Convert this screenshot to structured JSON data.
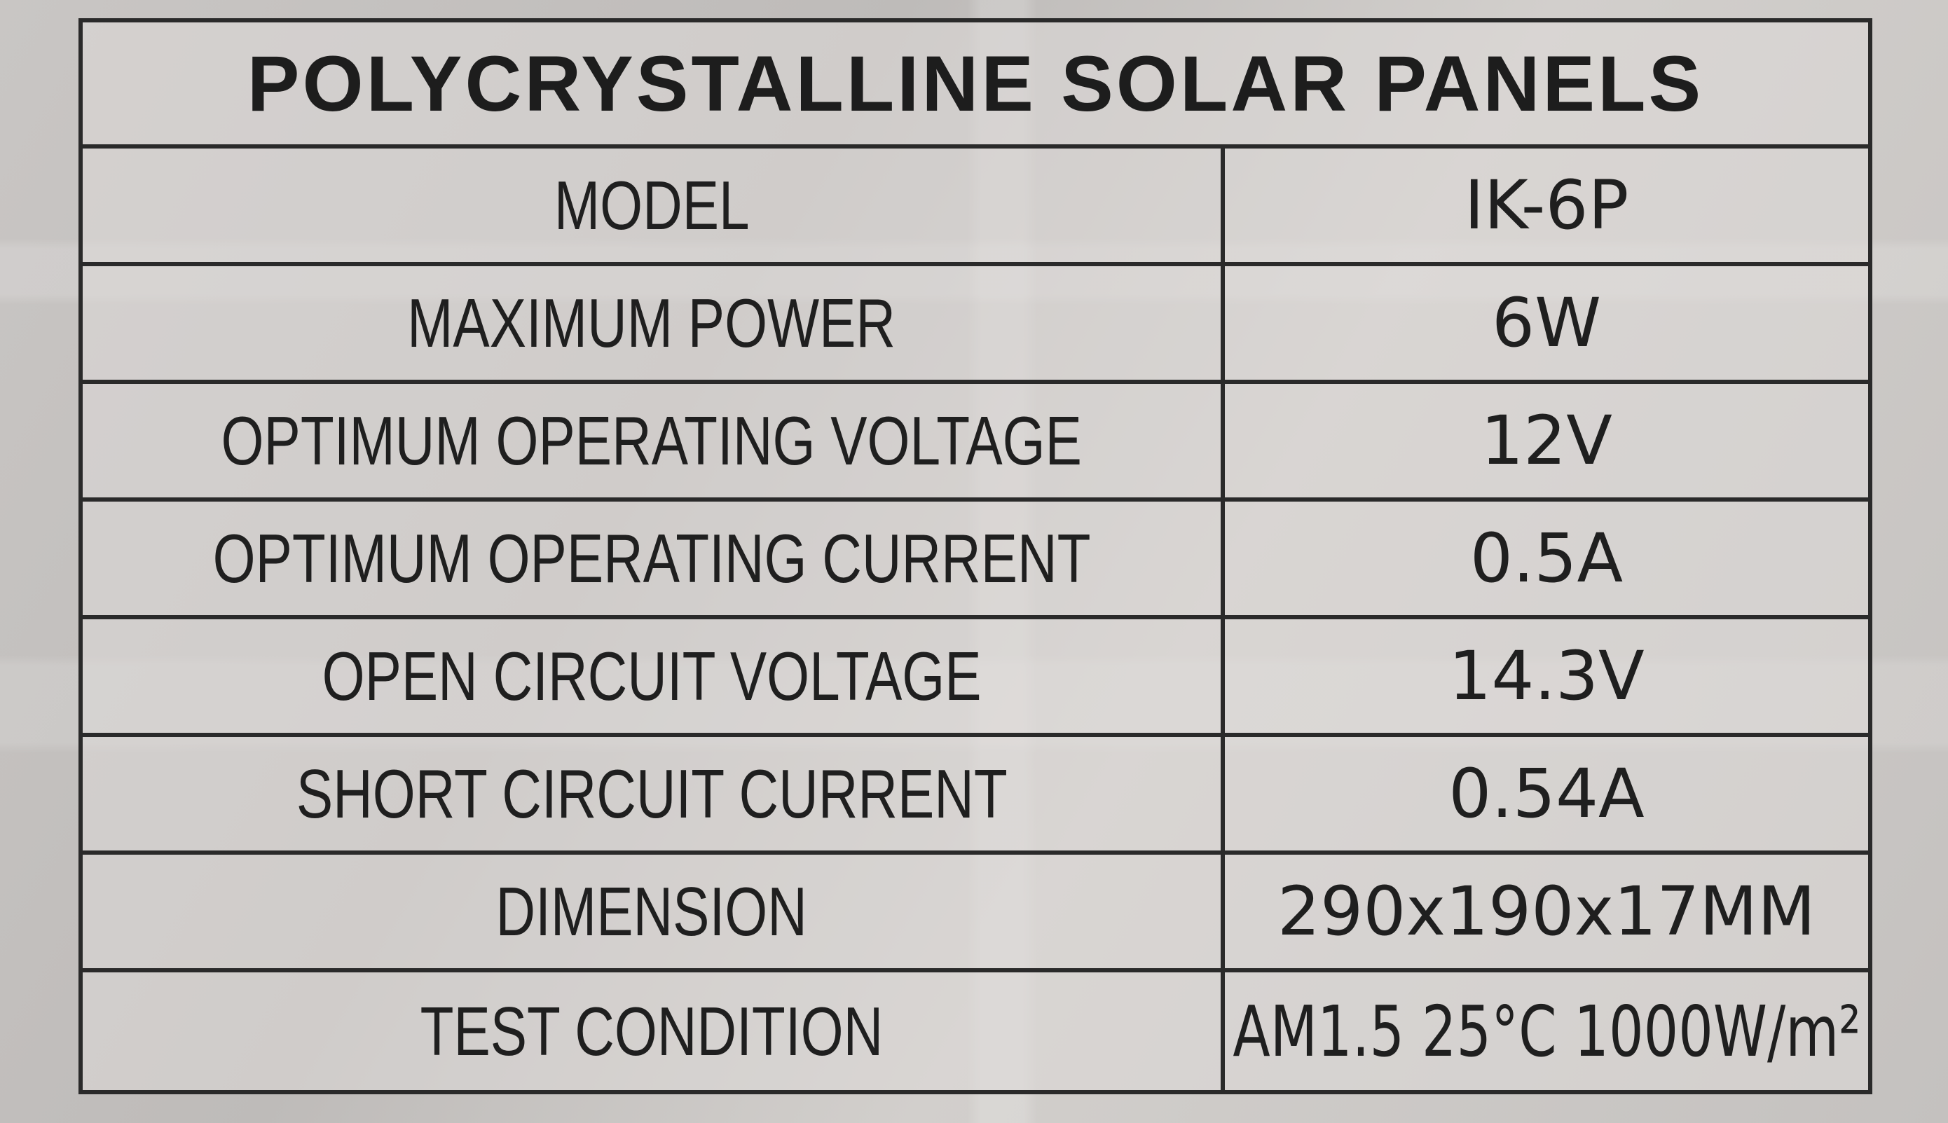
{
  "label": {
    "title": "POLYCRYSTALLINE SOLAR PANELS",
    "rows": [
      {
        "key": "MODEL",
        "value": "IK-6P"
      },
      {
        "key": "MAXIMUM POWER",
        "value": "6W"
      },
      {
        "key": "OPTIMUM OPERATING VOLTAGE",
        "value": "12V"
      },
      {
        "key": "OPTIMUM OPERATING CURRENT",
        "value": "0.5A"
      },
      {
        "key": "OPEN CIRCUIT VOLTAGE",
        "value": "14.3V"
      },
      {
        "key": "SHORT CIRCUIT CURRENT",
        "value": "0.54A"
      },
      {
        "key": "DIMENSION",
        "value": "290x190x17MM"
      },
      {
        "key": "TEST CONDITION",
        "value": "AM1.5 25°C 1000W/m²"
      }
    ]
  },
  "colors": {
    "border": "#2a2a2a",
    "text": "#1f1f1f",
    "background": "#c9c6c4"
  }
}
